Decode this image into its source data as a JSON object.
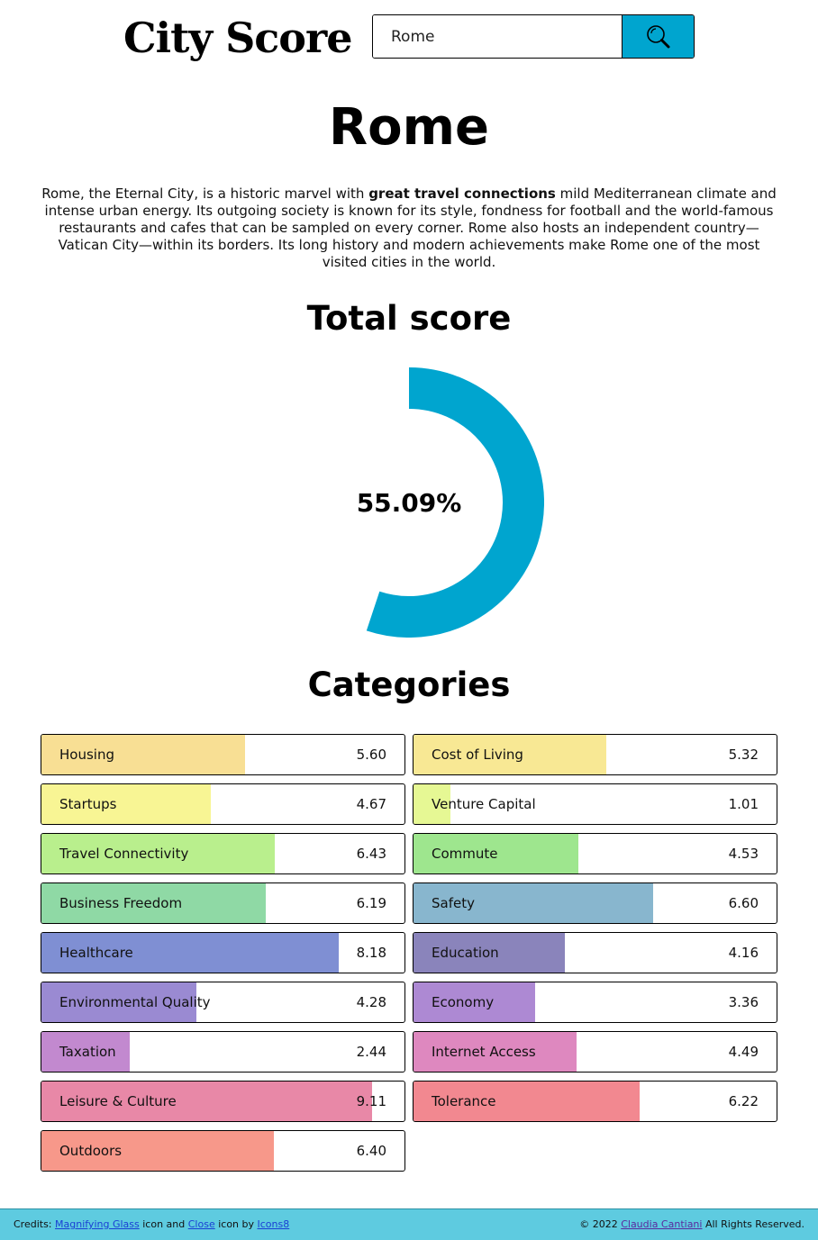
{
  "header": {
    "logo": "City Score",
    "search": {
      "value": "Rome",
      "icon": "magnifying-glass"
    }
  },
  "city": {
    "name": "Rome",
    "description_parts": [
      "Rome, the Eternal City, is a historic marvel with ",
      "great travel connections",
      " mild Mediterranean climate and intense urban energy. Its outgoing society is known for its style, fondness for football and the world-famous restaurants and cafes that can be sampled on every corner. Rome also hosts an independent country—Vatican City—within its borders. Its long history and modern achievements make Rome one of the most visited cities in the world."
    ]
  },
  "total": {
    "title": "Total score",
    "value_label": "55.09%",
    "fraction": 0.5509,
    "color": "#00a5cf"
  },
  "categories_title": "Categories",
  "categories": [
    {
      "label": "Housing",
      "value": "5.60",
      "score": 5.6,
      "color": "#f8df94"
    },
    {
      "label": "Cost of Living",
      "value": "5.32",
      "score": 5.32,
      "color": "#f8e894"
    },
    {
      "label": "Startups",
      "value": "4.67",
      "score": 4.67,
      "color": "#f8f594"
    },
    {
      "label": "Venture Capital",
      "value": "1.01",
      "score": 1.01,
      "color": "#e6f894"
    },
    {
      "label": "Travel Connectivity",
      "value": "6.43",
      "score": 6.43,
      "color": "#b9ef8d"
    },
    {
      "label": "Commute",
      "value": "4.53",
      "score": 4.53,
      "color": "#9ee68e"
    },
    {
      "label": "Business Freedom",
      "value": "6.19",
      "score": 6.19,
      "color": "#8fd9a5"
    },
    {
      "label": "Safety",
      "value": "6.60",
      "score": 6.6,
      "color": "#88b6ce"
    },
    {
      "label": "Healthcare",
      "value": "8.18",
      "score": 8.18,
      "color": "#7f8fd3"
    },
    {
      "label": "Education",
      "value": "4.16",
      "score": 4.16,
      "color": "#8a84bb"
    },
    {
      "label": "Environmental Quality",
      "value": "4.28",
      "score": 4.28,
      "color": "#9a8ad2"
    },
    {
      "label": "Economy",
      "value": "3.36",
      "score": 3.36,
      "color": "#ad89d3"
    },
    {
      "label": "Taxation",
      "value": "2.44",
      "score": 2.44,
      "color": "#c289cf"
    },
    {
      "label": "Internet Access",
      "value": "4.49",
      "score": 4.49,
      "color": "#de88bf"
    },
    {
      "label": "Leisure & Culture",
      "value": "9.11",
      "score": 9.11,
      "color": "#e888a7"
    },
    {
      "label": "Tolerance",
      "value": "6.22",
      "score": 6.22,
      "color": "#f28890"
    },
    {
      "label": "Outdoors",
      "value": "6.40",
      "score": 6.4,
      "color": "#f7988a"
    }
  ],
  "footer": {
    "credits_prefix": "Credits: ",
    "link_magnifying": "Magnifying Glass",
    "text_icon_and": " icon and ",
    "link_close": "Close",
    "text_icon_by": " icon by ",
    "link_icons8": "Icons8",
    "copyright_prefix": "© 2022 ",
    "author": "Claudia Cantiani",
    "rights": " All Rights Reserved."
  }
}
